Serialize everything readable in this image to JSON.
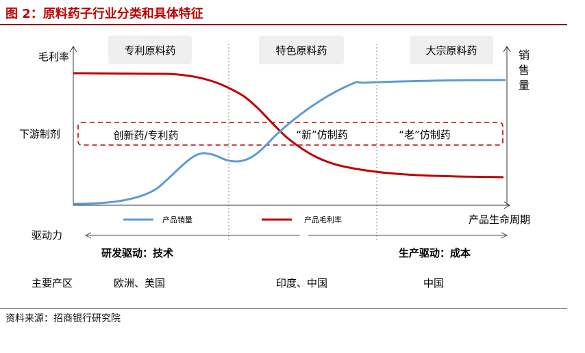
{
  "title": "图 2：原料药子行业分类和具体特征",
  "source": "资料来源：招商银行研究院",
  "y_axis_left": "毛利率",
  "y_axis_right": [
    "销",
    "售",
    "量"
  ],
  "x_axis": "产品生命周期",
  "categories": [
    "专利原料药",
    "特色原料药",
    "大宗原料药"
  ],
  "downstream_label": "下游制剂",
  "downstream_items": [
    "创新药/专利药",
    "“新”仿制药",
    "“老”仿制药"
  ],
  "legend": {
    "sales": "产品销量",
    "margin": "产品毛利率"
  },
  "drive_label": "驱动力",
  "drive_left": "研发驱动：技术",
  "drive_right": "生产驱动：成本",
  "region_label": "主要产区",
  "regions": [
    "欧洲、美国",
    "印度、中国",
    "中国"
  ],
  "colors": {
    "sales": "#5b9bd5",
    "margin": "#c00000",
    "title": "#c00000"
  }
}
